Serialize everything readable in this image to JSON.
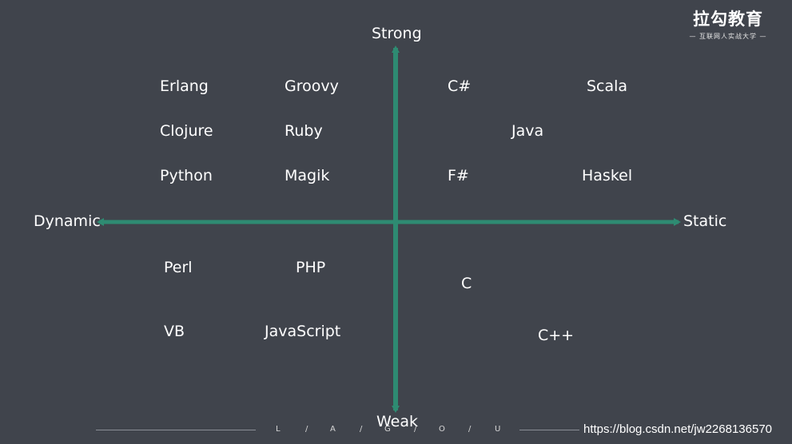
{
  "logo": {
    "title": "拉勾教育",
    "subtitle": "— 互联网人实战大学 —"
  },
  "axes": {
    "top": "Strong",
    "bottom": "Weak",
    "left": "Dynamic",
    "right": "Static",
    "color": "#2e8b72"
  },
  "quadrants": {
    "strong_dynamic": [
      "Erlang",
      "Groovy",
      "Clojure",
      "Ruby",
      "Python",
      "Magik"
    ],
    "strong_static": [
      "C#",
      "Scala",
      "Java",
      "F#",
      "Haskel"
    ],
    "weak_dynamic": [
      "Perl",
      "PHP",
      "VB",
      "JavaScript"
    ],
    "weak_static": [
      "C",
      "C++"
    ]
  },
  "footer": {
    "letters": [
      "L",
      "/",
      "A",
      "/",
      "G",
      "/",
      "O",
      "/",
      "U"
    ],
    "watermark": "https://blog.csdn.net/jw2268136570"
  }
}
